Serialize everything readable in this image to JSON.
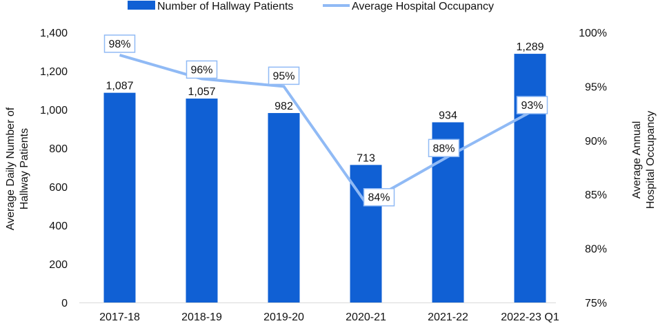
{
  "chart_data": {
    "type": "bar+line",
    "categories": [
      "2017-18",
      "2018-19",
      "2019-20",
      "2020-21",
      "2021-22",
      "2022-23 Q1"
    ],
    "series": [
      {
        "name": "Number of Hallway Patients",
        "type": "bar",
        "axis": "left",
        "color": "#1060D4",
        "values": [
          1087,
          1057,
          982,
          713,
          934,
          1289
        ],
        "labels": [
          "1,087",
          "1,057",
          "982",
          "713",
          "934",
          "1,289"
        ]
      },
      {
        "name": "Average Hospital Occupancy",
        "type": "line",
        "axis": "right",
        "color": "#90BAF5",
        "values": [
          97.9,
          95.7,
          95.0,
          84.2,
          88.5,
          92.6
        ],
        "labels": [
          "98%",
          "96%",
          "95%",
          "84%",
          "88%",
          "93%"
        ]
      }
    ],
    "ylabel": "Average Daily Number of Hallway Patients",
    "ylabel_lines": [
      "Average Daily Number of",
      "Hallway Patients"
    ],
    "ylim": [
      0,
      1400
    ],
    "yticks": [
      "0",
      "200",
      "400",
      "600",
      "800",
      "1,000",
      "1,200",
      "1,400"
    ],
    "y2label_lines": [
      "Average Annual",
      "Hospital Occupancy"
    ],
    "y2lim": [
      75,
      100
    ],
    "y2ticks": [
      "75%",
      "80%",
      "85%",
      "90%",
      "95%",
      "100%"
    ],
    "legend_position": "top",
    "grid": false
  }
}
